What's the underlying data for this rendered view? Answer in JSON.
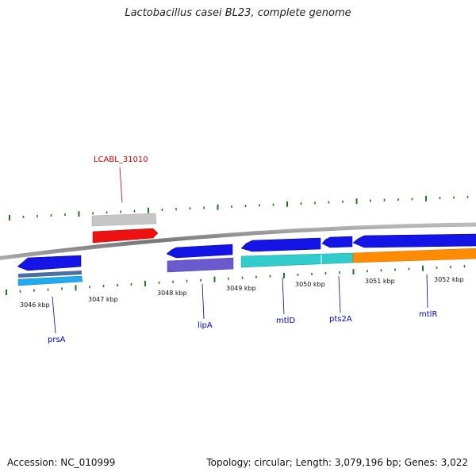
{
  "title": "Lactobacillus casei BL23, complete genome",
  "footer": {
    "accession": "Accession: NC_010999",
    "summary": "Topology: circular; Length: 3,079,196 bp; Genes: 3,022"
  },
  "ticks": [
    "3046 kbp",
    "3047 kbp",
    "3048 kbp",
    "3049 kbp",
    "3050 kbp",
    "3051 kbp",
    "3052 kbp"
  ],
  "genes": [
    {
      "name": "prsA",
      "color": "#1010e0"
    },
    {
      "name": "LCABL_31010",
      "color": "#cc0000"
    },
    {
      "name": "lipA",
      "color": "#1010e0"
    },
    {
      "name": "mtlD",
      "color": "#1010e0"
    },
    {
      "name": "pts2A",
      "color": "#1010e0"
    },
    {
      "name": "mtlR",
      "color": "#1010e0"
    }
  ],
  "colors": {
    "backbone": "#888888",
    "tick": "#1e7a1e",
    "cds_blue": "#1414e6",
    "cds_red": "#ee1111",
    "cds_gray": "#c8c8c8",
    "feature_cyan": "#33cccc",
    "feature_orange": "#ff8c00",
    "feature_purple": "#6a5acd",
    "feature_skyblue": "#22aaee",
    "feature_slate": "#4a6fa0"
  }
}
